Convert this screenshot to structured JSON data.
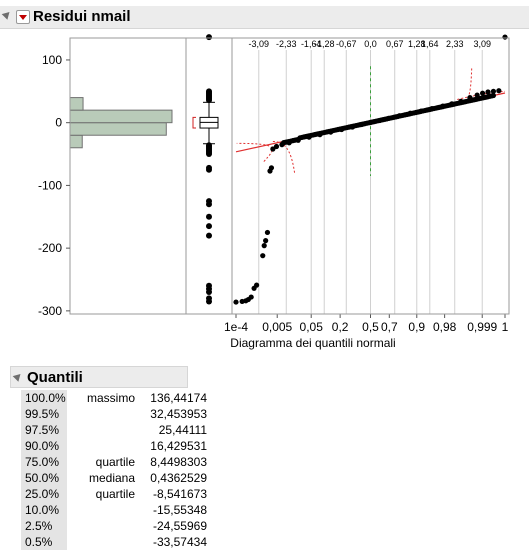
{
  "panel": {
    "title": "Residui nmail"
  },
  "quantiles_panel": {
    "title": "Quantili",
    "rows": [
      {
        "pct": "100.0%",
        "label": "massimo",
        "value": "136,44174"
      },
      {
        "pct": "99.5%",
        "label": "",
        "value": "32,453953"
      },
      {
        "pct": "97.5%",
        "label": "",
        "value": "25,44111"
      },
      {
        "pct": "90.0%",
        "label": "",
        "value": "16,429531"
      },
      {
        "pct": "75.0%",
        "label": "quartile",
        "value": "8,4498303"
      },
      {
        "pct": "50.0%",
        "label": "mediana",
        "value": "0,4362529"
      },
      {
        "pct": "25.0%",
        "label": "quartile",
        "value": "-8,541673"
      },
      {
        "pct": "10.0%",
        "label": "",
        "value": "-15,55348"
      },
      {
        "pct": "2.5%",
        "label": "",
        "value": "-24,55969"
      },
      {
        "pct": "0.5%",
        "label": "",
        "value": "-33,57434"
      }
    ]
  },
  "colors": {
    "histogram_fill": "#b9cbb9",
    "fit_line": "#e03030",
    "median_line": "#3aa03a",
    "points": "#000000",
    "grid": "#d0d0d0"
  },
  "chart_data": [
    {
      "type": "histogram",
      "ylim": [
        -305,
        135
      ],
      "yticks": [
        100,
        0,
        -100,
        -200,
        -300
      ],
      "bins": [
        {
          "from": -40,
          "to": -20,
          "count": 15
        },
        {
          "from": -20,
          "to": 0,
          "count": 118
        },
        {
          "from": 0,
          "to": 20,
          "count": 125
        },
        {
          "from": 20,
          "to": 40,
          "count": 16
        }
      ]
    },
    {
      "type": "box",
      "q1": -8.541673,
      "median": 0.4362529,
      "q3": 8.4498303,
      "whisker_low": -33.57434,
      "whisker_high": 32.453953,
      "outliers": [
        136.44,
        50,
        48,
        46,
        44,
        42,
        40,
        38,
        36,
        -36,
        -38,
        -40,
        -42,
        -44,
        -46,
        -48,
        -50,
        -72,
        -75,
        -125,
        -130,
        -150,
        -165,
        -180,
        -260,
        -265,
        -270,
        -280,
        -285
      ]
    },
    {
      "type": "scatter",
      "xlabel": "Diagramma dei quantili normali",
      "top_ticks": [
        "-3,09",
        "-2,33",
        "-1,64",
        "-1,28",
        "-0,67",
        "0,0",
        "0,67",
        "1,28",
        "1,64",
        "2,33",
        "3,09"
      ],
      "top_tick_z": [
        -3.09,
        -2.33,
        -1.64,
        -1.28,
        -0.67,
        0,
        0.67,
        1.28,
        1.64,
        2.33,
        3.09
      ],
      "bottom_ticks": [
        "1e-4",
        "0,005",
        "0,05",
        "0,2",
        "0,5",
        "0,7",
        "0,9",
        "0,98",
        "0,999",
        "1"
      ],
      "bottom_tick_z": [
        -3.72,
        -2.58,
        -1.64,
        -0.84,
        0,
        0.52,
        1.28,
        2.05,
        3.09,
        3.72
      ],
      "fit_line": {
        "intercept": 0.4362529,
        "slope": 12.6
      },
      "points": [
        [
          -3.72,
          -286
        ],
        [
          -3.55,
          -285
        ],
        [
          -3.45,
          -284
        ],
        [
          -3.38,
          -282
        ],
        [
          -3.3,
          -278
        ],
        [
          -3.22,
          -264
        ],
        [
          -3.15,
          -259
        ],
        [
          -2.98,
          -212
        ],
        [
          -2.94,
          -196
        ],
        [
          -2.9,
          -188
        ],
        [
          -2.85,
          -175
        ],
        [
          -2.78,
          -77
        ],
        [
          -2.74,
          -72
        ],
        [
          -2.7,
          -42
        ],
        [
          -2.6,
          -38
        ],
        [
          -2.45,
          -35
        ],
        [
          -2.25,
          -32
        ],
        [
          -2.0,
          -28
        ],
        [
          -1.7,
          -23
        ],
        [
          -1.4,
          -19
        ],
        [
          -1.1,
          -15
        ],
        [
          -0.8,
          -11
        ],
        [
          -0.5,
          -7
        ],
        [
          -0.25,
          -3
        ],
        [
          0.0,
          0.4
        ],
        [
          0.25,
          3.5
        ],
        [
          0.5,
          7
        ],
        [
          0.8,
          11
        ],
        [
          1.1,
          15
        ],
        [
          1.4,
          18.5
        ],
        [
          1.7,
          22.5
        ],
        [
          2.0,
          26.5
        ],
        [
          2.25,
          30
        ],
        [
          2.5,
          34
        ],
        [
          2.75,
          40
        ],
        [
          2.95,
          44
        ],
        [
          3.1,
          47
        ],
        [
          3.25,
          49
        ],
        [
          3.4,
          50
        ],
        [
          3.55,
          51
        ],
        [
          3.72,
          136.44
        ]
      ]
    }
  ]
}
